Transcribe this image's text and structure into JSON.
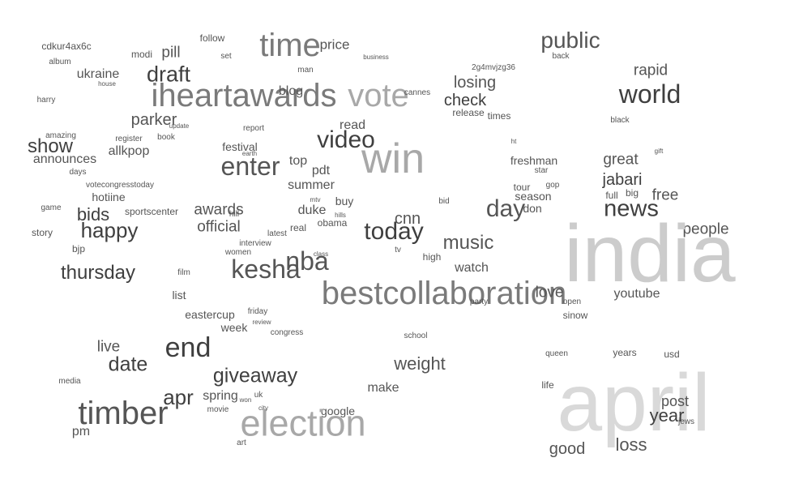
{
  "words": [
    "cdkur4ax6c",
    "modi",
    "pill",
    "follow",
    "time",
    "price",
    "public",
    "album",
    "set",
    "business",
    "ukraine",
    "man",
    "2g4mvjzg36",
    "back",
    "rapid",
    "house",
    "draft",
    "iheartawards",
    "vote",
    "losing",
    "world",
    "blog",
    "cannes",
    "harry",
    "check",
    "release",
    "times",
    "parker",
    "update",
    "read",
    "black",
    "amazing",
    "register",
    "book",
    "report",
    "show",
    "allkpop",
    "video",
    "festival",
    "win",
    "ht",
    "gift",
    "announces",
    "earth",
    "enter",
    "top",
    "freshman",
    "great",
    "days",
    "pdt",
    "star",
    "votecongresstoday",
    "summer",
    "jabari",
    "hotiine",
    "tour",
    "gop",
    "season",
    "big",
    "full",
    "free",
    "game",
    "sportscenter",
    "awards",
    "mtv",
    "buy",
    "bid",
    "bids",
    "hill",
    "duke",
    "hills",
    "day",
    "don",
    "news",
    "happy",
    "official",
    "real",
    "obama",
    "cnn",
    "today",
    "story",
    "latest",
    "people",
    "bjp",
    "interview",
    "music",
    "india",
    "women",
    "nba",
    "tv",
    "kesha",
    "class",
    "high",
    "thursday",
    "watch",
    "film",
    "bestcollaboration",
    "love",
    "list",
    "open",
    "youtube",
    "party",
    "eastercup",
    "friday",
    "sinow",
    "review",
    "week",
    "congress",
    "school",
    "live",
    "end",
    "queen",
    "years",
    "usd",
    "date",
    "weight",
    "media",
    "giveaway",
    "make",
    "life",
    "apr",
    "spring",
    "uk",
    "won",
    "timber",
    "city",
    "april",
    "post",
    "movie",
    "google",
    "year",
    "election",
    "jews",
    "pm",
    "art",
    "good",
    "loss"
  ]
}
